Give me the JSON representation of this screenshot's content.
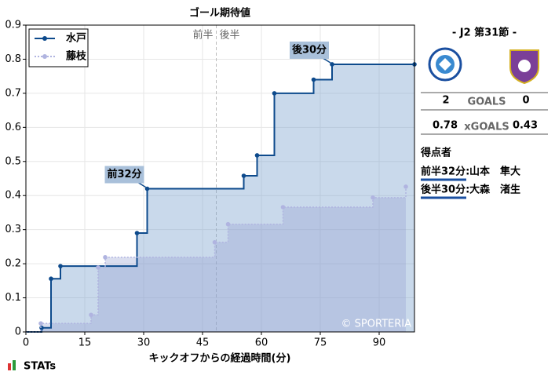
{
  "chart_data": {
    "type": "step",
    "title": "ゴール期待値",
    "x_label": "キックオフからの経過時間(分)",
    "xlim": [
      0,
      99
    ],
    "xticks": [
      0,
      15,
      30,
      45,
      60,
      75,
      90
    ],
    "ylim": [
      0,
      0.9
    ],
    "yticks": [
      0,
      0.1,
      0.2,
      0.3,
      0.4,
      0.5,
      0.6,
      0.7,
      0.8,
      0.9
    ],
    "grid": true,
    "legend": "upper left",
    "halftime": {
      "x": 48.5,
      "first": "前半",
      "second": "後半"
    },
    "series": [
      {
        "name": "水戸",
        "color": "#0d4a8c",
        "fill": "rgba(120,160,205,0.4)",
        "style": "solid",
        "x": [
          4,
          6.4,
          8.8,
          28.3,
          30.9,
          55.5,
          58.9,
          63.3,
          73.3,
          78,
          99
        ],
        "values": [
          0.012,
          0.156,
          0.193,
          0.29,
          0.42,
          0.458,
          0.518,
          0.7,
          0.74,
          0.785,
          0.785
        ]
      },
      {
        "name": "藤枝",
        "color": "#b0b4e0",
        "fill": "rgba(150,160,210,0.35)",
        "style": "dotted",
        "x": [
          3.8,
          16.6,
          18.4,
          20.2,
          48.1,
          51.5,
          65.5,
          88.4,
          96.8
        ],
        "values": [
          0.025,
          0.05,
          0.189,
          0.219,
          0.263,
          0.316,
          0.366,
          0.394,
          0.426
        ]
      }
    ],
    "annotations": [
      {
        "text": "前32分",
        "x": 30.9,
        "y": 0.42
      },
      {
        "text": "後30分",
        "x": 78,
        "y": 0.785
      }
    ],
    "watermark": "© SPORTERIA"
  },
  "panel": {
    "match": "- J2 第31節 -",
    "goals": {
      "home": "2",
      "label": "GOALS",
      "away": "0"
    },
    "xg": {
      "home": "0.78",
      "label": "xGOALS",
      "away": "0.43"
    },
    "scorers_title": "得点者",
    "scorers": [
      {
        "time": "前半32分:",
        "name": "山本　隼大"
      },
      {
        "time": "後半30分:",
        "name": "大森　渚生"
      }
    ]
  },
  "brand": "STATs"
}
